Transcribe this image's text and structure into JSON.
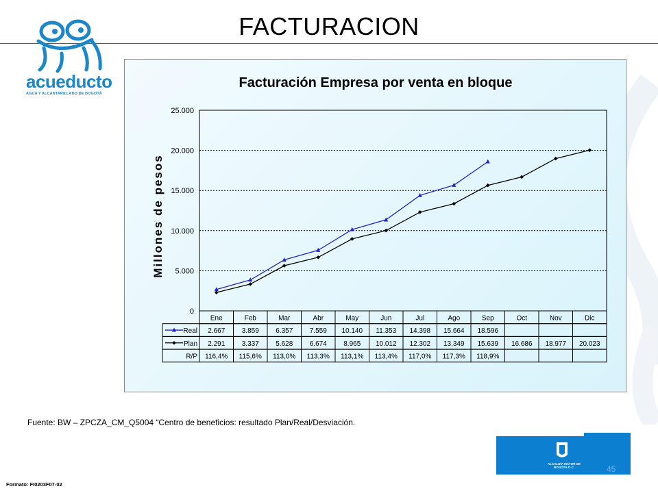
{
  "slide": {
    "title": "FACTURACION",
    "source": "Fuente:   BW – ZPCZA_CM_Q5004  “Centro  de beneficios: resultado Plan/Real/Desviación.",
    "format_code": "Formato: FI0203F07-02",
    "page_number": "45"
  },
  "logo": {
    "name": "acueducto",
    "subtitle": "AGUA Y ALCANTARILLADO DE BOGOTÁ",
    "icon": "frog-icon"
  },
  "footer": {
    "emblem_icon": "coat-of-arms-icon",
    "emblem_text": "ALCALDÍA MAYOR DE BOGOTÁ D.C."
  },
  "colors": {
    "brand_blue": "#1b86c8",
    "real_series": "#2323c8",
    "plan_series": "#000000",
    "footer_blue": "#0d7fd1"
  },
  "chart_data": {
    "type": "line",
    "title": "Facturación Empresa por venta en bloque",
    "ylabel": "Millones de pesos",
    "ylim": [
      0,
      25000
    ],
    "ytick_labels": [
      "25.000",
      "20.000",
      "15.000",
      "10.000",
      "5.000",
      "0"
    ],
    "ytick_values": [
      25000,
      20000,
      15000,
      10000,
      5000,
      0
    ],
    "grid": "horizontal dashed",
    "categories": [
      "Ene",
      "Feb",
      "Mar",
      "Abr",
      "May",
      "Jun",
      "Jul",
      "Ago",
      "Sep",
      "Oct",
      "Nov",
      "Dic"
    ],
    "series": [
      {
        "name": "Real",
        "marker": "triangle",
        "values": [
          2667,
          3859,
          6357,
          7559,
          10140,
          11353,
          14398,
          15664,
          18596,
          null,
          null,
          null
        ],
        "labels": [
          "2.667",
          "3.859",
          "6.357",
          "7.559",
          "10.140",
          "11.353",
          "14.398",
          "15.664",
          "18.596",
          "",
          "",
          ""
        ]
      },
      {
        "name": "Plan",
        "marker": "diamond",
        "values": [
          2291,
          3337,
          5628,
          6674,
          8965,
          10012,
          12302,
          13349,
          15639,
          16686,
          18977,
          20023
        ],
        "labels": [
          "2.291",
          "3.337",
          "5.628",
          "6.674",
          "8.965",
          "10.012",
          "12.302",
          "13.349",
          "15.639",
          "16.686",
          "18.977",
          "20.023"
        ]
      }
    ],
    "ratio_row": {
      "name": "R/P",
      "labels": [
        "116,4%",
        "115,6%",
        "113,0%",
        "113,3%",
        "113,1%",
        "113,4%",
        "117,0%",
        "117,3%",
        "118,9%",
        "",
        "",
        ""
      ]
    }
  }
}
